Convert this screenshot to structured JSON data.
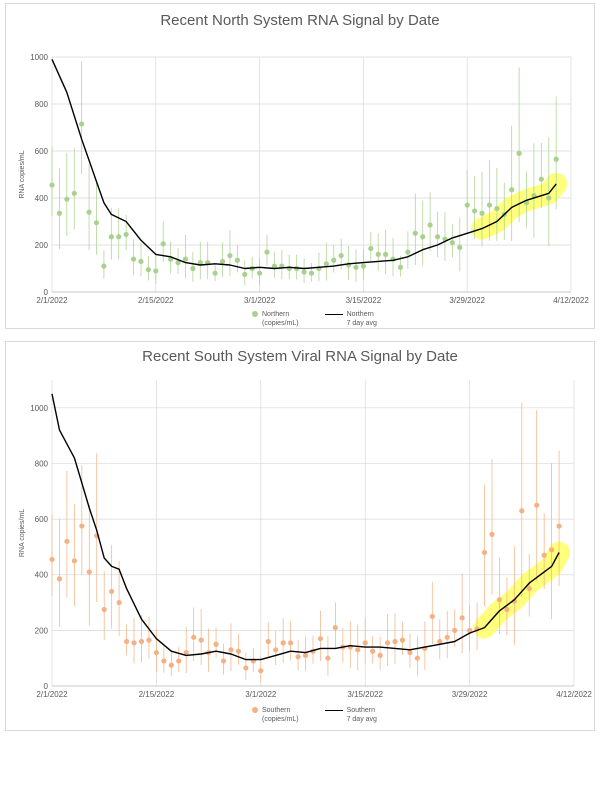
{
  "chart_data": [
    {
      "type": "scatter",
      "title": "Recent North System RNA Signal by Date",
      "ylabel": "RNA copies/mL",
      "xlabel": "",
      "ylim": [
        0,
        1000
      ],
      "yticks": [
        0,
        200,
        400,
        600,
        800,
        1000
      ],
      "xlim": [
        "2022-02-01",
        "2022-04-12"
      ],
      "xticks": [
        "2/1/2022",
        "2/15/2022",
        "3/1/2022",
        "3/15/2022",
        "3/29/2022",
        "4/12/2022"
      ],
      "grid": true,
      "legend_position": "bottom",
      "marker_color": "#a9d18e",
      "line_color": "#000000",
      "highlight_color": "#ffff66",
      "legend": {
        "points": "Northern\n(copies/mL)",
        "line": "Northern\n7 day avg"
      },
      "series": [
        {
          "name": "Northern (copies/mL)",
          "points": [
            [
              0,
              455
            ],
            [
              1,
              335
            ],
            [
              2,
              395
            ],
            [
              3,
              420
            ],
            [
              4,
              715
            ],
            [
              5,
              340
            ],
            [
              6,
              295
            ],
            [
              7,
              110
            ],
            [
              8,
              235
            ],
            [
              9,
              235
            ],
            [
              10,
              245
            ],
            [
              11,
              140
            ],
            [
              12,
              130
            ],
            [
              13,
              95
            ],
            [
              14,
              90
            ],
            [
              15,
              205
            ],
            [
              16,
              140
            ],
            [
              17,
              125
            ],
            [
              18,
              140
            ],
            [
              19,
              100
            ],
            [
              20,
              125
            ],
            [
              21,
              125
            ],
            [
              22,
              80
            ],
            [
              23,
              130
            ],
            [
              24,
              155
            ],
            [
              25,
              135
            ],
            [
              26,
              75
            ],
            [
              27,
              100
            ],
            [
              28,
              80
            ],
            [
              29,
              170
            ],
            [
              30,
              110
            ],
            [
              31,
              110
            ],
            [
              32,
              100
            ],
            [
              33,
              100
            ],
            [
              34,
              85
            ],
            [
              35,
              80
            ],
            [
              36,
              100
            ],
            [
              37,
              120
            ],
            [
              38,
              135
            ],
            [
              39,
              155
            ],
            [
              40,
              115
            ],
            [
              41,
              105
            ],
            [
              42,
              110
            ],
            [
              43,
              185
            ],
            [
              44,
              160
            ],
            [
              45,
              160
            ],
            [
              46,
              140
            ],
            [
              47,
              105
            ],
            [
              48,
              170
            ],
            [
              49,
              250
            ],
            [
              50,
              235
            ],
            [
              51,
              285
            ],
            [
              52,
              235
            ],
            [
              53,
              225
            ],
            [
              54,
              210
            ],
            [
              55,
              190
            ],
            [
              56,
              370
            ],
            [
              57,
              345
            ],
            [
              58,
              335
            ],
            [
              59,
              370
            ],
            [
              60,
              355
            ],
            [
              61,
              330
            ],
            [
              62,
              435
            ],
            [
              63,
              590
            ],
            [
              64,
              380
            ],
            [
              65,
              410
            ],
            [
              66,
              480
            ],
            [
              67,
              400
            ],
            [
              68,
              565
            ]
          ]
        },
        {
          "name": "Northern 7 day avg",
          "points": [
            [
              0,
              990
            ],
            [
              2,
              850
            ],
            [
              4,
              650
            ],
            [
              6,
              470
            ],
            [
              7,
              380
            ],
            [
              8,
              330
            ],
            [
              10,
              300
            ],
            [
              12,
              220
            ],
            [
              14,
              160
            ],
            [
              16,
              150
            ],
            [
              18,
              125
            ],
            [
              20,
              115
            ],
            [
              22,
              120
            ],
            [
              24,
              115
            ],
            [
              26,
              100
            ],
            [
              28,
              105
            ],
            [
              30,
              100
            ],
            [
              32,
              105
            ],
            [
              34,
              100
            ],
            [
              36,
              105
            ],
            [
              38,
              110
            ],
            [
              40,
              120
            ],
            [
              42,
              125
            ],
            [
              44,
              130
            ],
            [
              46,
              135
            ],
            [
              48,
              150
            ],
            [
              50,
              180
            ],
            [
              52,
              200
            ],
            [
              54,
              230
            ],
            [
              56,
              250
            ],
            [
              58,
              270
            ],
            [
              60,
              300
            ],
            [
              62,
              360
            ],
            [
              64,
              390
            ],
            [
              66,
              410
            ],
            [
              67,
              420
            ],
            [
              68,
              460
            ]
          ]
        }
      ]
    },
    {
      "type": "scatter",
      "title": "Recent South System Viral RNA Signal by Date",
      "ylabel": "RNA copies/mL",
      "xlabel": "",
      "ylim": [
        0,
        1100
      ],
      "yticks": [
        0,
        200,
        400,
        600,
        800,
        1000
      ],
      "xlim": [
        "2022-02-01",
        "2022-04-12"
      ],
      "xticks": [
        "2/1/2022",
        "2/15/2022",
        "3/1/2022",
        "3/15/2022",
        "3/29/2022",
        "4/12/2022"
      ],
      "grid": true,
      "legend_position": "bottom",
      "marker_color": "#f4b183",
      "line_color": "#000000",
      "highlight_color": "#ffff66",
      "legend": {
        "points": "Southern\n(copies/mL)",
        "line": "Southern\n7 day avg"
      },
      "series": [
        {
          "name": "Southern (copies/mL)",
          "points": [
            [
              0,
              455
            ],
            [
              1,
              385
            ],
            [
              2,
              520
            ],
            [
              3,
              450
            ],
            [
              4,
              575
            ],
            [
              5,
              410
            ],
            [
              6,
              540
            ],
            [
              7,
              275
            ],
            [
              8,
              340
            ],
            [
              9,
              300
            ],
            [
              10,
              160
            ],
            [
              11,
              155
            ],
            [
              12,
              160
            ],
            [
              13,
              165
            ],
            [
              14,
              120
            ],
            [
              15,
              90
            ],
            [
              16,
              75
            ],
            [
              17,
              90
            ],
            [
              18,
              120
            ],
            [
              19,
              175
            ],
            [
              20,
              165
            ],
            [
              21,
              120
            ],
            [
              22,
              150
            ],
            [
              23,
              90
            ],
            [
              24,
              130
            ],
            [
              25,
              125
            ],
            [
              26,
              65
            ],
            [
              27,
              90
            ],
            [
              28,
              55
            ],
            [
              29,
              160
            ],
            [
              30,
              130
            ],
            [
              31,
              155
            ],
            [
              32,
              155
            ],
            [
              33,
              105
            ],
            [
              34,
              110
            ],
            [
              35,
              125
            ],
            [
              36,
              170
            ],
            [
              37,
              100
            ],
            [
              38,
              210
            ],
            [
              39,
              140
            ],
            [
              40,
              140
            ],
            [
              41,
              130
            ],
            [
              42,
              155
            ],
            [
              43,
              125
            ],
            [
              44,
              110
            ],
            [
              45,
              155
            ],
            [
              46,
              160
            ],
            [
              47,
              165
            ],
            [
              48,
              120
            ],
            [
              49,
              100
            ],
            [
              50,
              135
            ],
            [
              51,
              250
            ],
            [
              52,
              160
            ],
            [
              53,
              175
            ],
            [
              54,
              200
            ],
            [
              55,
              245
            ],
            [
              56,
              200
            ],
            [
              57,
              205
            ],
            [
              58,
              480
            ],
            [
              59,
              545
            ],
            [
              60,
              310
            ],
            [
              61,
              275
            ],
            [
              62,
              305
            ],
            [
              63,
              630
            ],
            [
              64,
              350
            ],
            [
              65,
              650
            ],
            [
              66,
              470
            ],
            [
              67,
              490
            ],
            [
              68,
              575
            ]
          ]
        },
        {
          "name": "Southern 7 day avg",
          "points": [
            [
              0,
              1050
            ],
            [
              1,
              920
            ],
            [
              3,
              820
            ],
            [
              5,
              640
            ],
            [
              6,
              560
            ],
            [
              7,
              460
            ],
            [
              8,
              430
            ],
            [
              9,
              420
            ],
            [
              10,
              350
            ],
            [
              12,
              240
            ],
            [
              14,
              170
            ],
            [
              16,
              125
            ],
            [
              18,
              110
            ],
            [
              20,
              115
            ],
            [
              22,
              125
            ],
            [
              24,
              115
            ],
            [
              26,
              95
            ],
            [
              28,
              95
            ],
            [
              30,
              110
            ],
            [
              32,
              125
            ],
            [
              34,
              120
            ],
            [
              36,
              135
            ],
            [
              38,
              135
            ],
            [
              40,
              145
            ],
            [
              42,
              140
            ],
            [
              44,
              140
            ],
            [
              46,
              135
            ],
            [
              48,
              130
            ],
            [
              50,
              140
            ],
            [
              52,
              150
            ],
            [
              54,
              160
            ],
            [
              56,
              190
            ],
            [
              58,
              210
            ],
            [
              60,
              270
            ],
            [
              62,
              310
            ],
            [
              64,
              370
            ],
            [
              66,
              410
            ],
            [
              67,
              430
            ],
            [
              68,
              480
            ]
          ]
        }
      ]
    }
  ]
}
